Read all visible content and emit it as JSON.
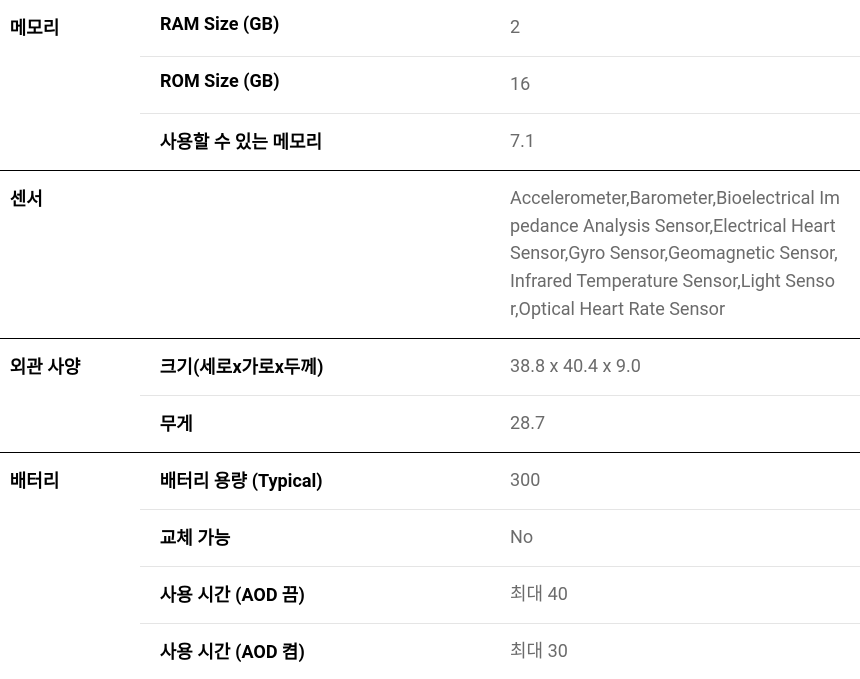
{
  "table": {
    "type": "table",
    "border_color": "#000000",
    "sub_border_color": "#e5e5e5",
    "background_color": "#ffffff",
    "category_fontsize": 18,
    "category_fontweight": 700,
    "category_color": "#000000",
    "label_fontsize": 18,
    "label_fontweight": 700,
    "label_color": "#000000",
    "value_fontsize": 18,
    "value_color": "#6b6b6b",
    "category_col_width": 140,
    "label_col_width": 360,
    "sections": [
      {
        "category": "메모리",
        "rows": [
          {
            "label": "RAM Size (GB)",
            "value": "2"
          },
          {
            "label": "ROM Size (GB)",
            "value": "16"
          },
          {
            "label": "사용할 수 있는 메모리",
            "value": "7.1"
          }
        ]
      },
      {
        "category": "센서",
        "rows": [
          {
            "label": "",
            "value": "Accelerometer,Barometer,Bioelectrical Impedance Analysis Sensor,Electrical Heart Sensor,Gyro Sensor,Geomagnetic Sensor,Infrared Temperature Sensor,Light Sensor,Optical Heart Rate Sensor"
          }
        ]
      },
      {
        "category": "외관 사양",
        "rows": [
          {
            "label": "크기(세로x가로x두께)",
            "value": "38.8 x 40.4 x 9.0"
          },
          {
            "label": "무게",
            "value": "28.7"
          }
        ]
      },
      {
        "category": "배터리",
        "rows": [
          {
            "label": "배터리 용량 (Typical)",
            "value": "300"
          },
          {
            "label": "교체 가능",
            "value": "No"
          },
          {
            "label": "사용 시간 (AOD 끔)",
            "value": "최대 40"
          },
          {
            "label": "사용 시간 (AOD 켬)",
            "value": "최대 30"
          }
        ]
      }
    ]
  }
}
